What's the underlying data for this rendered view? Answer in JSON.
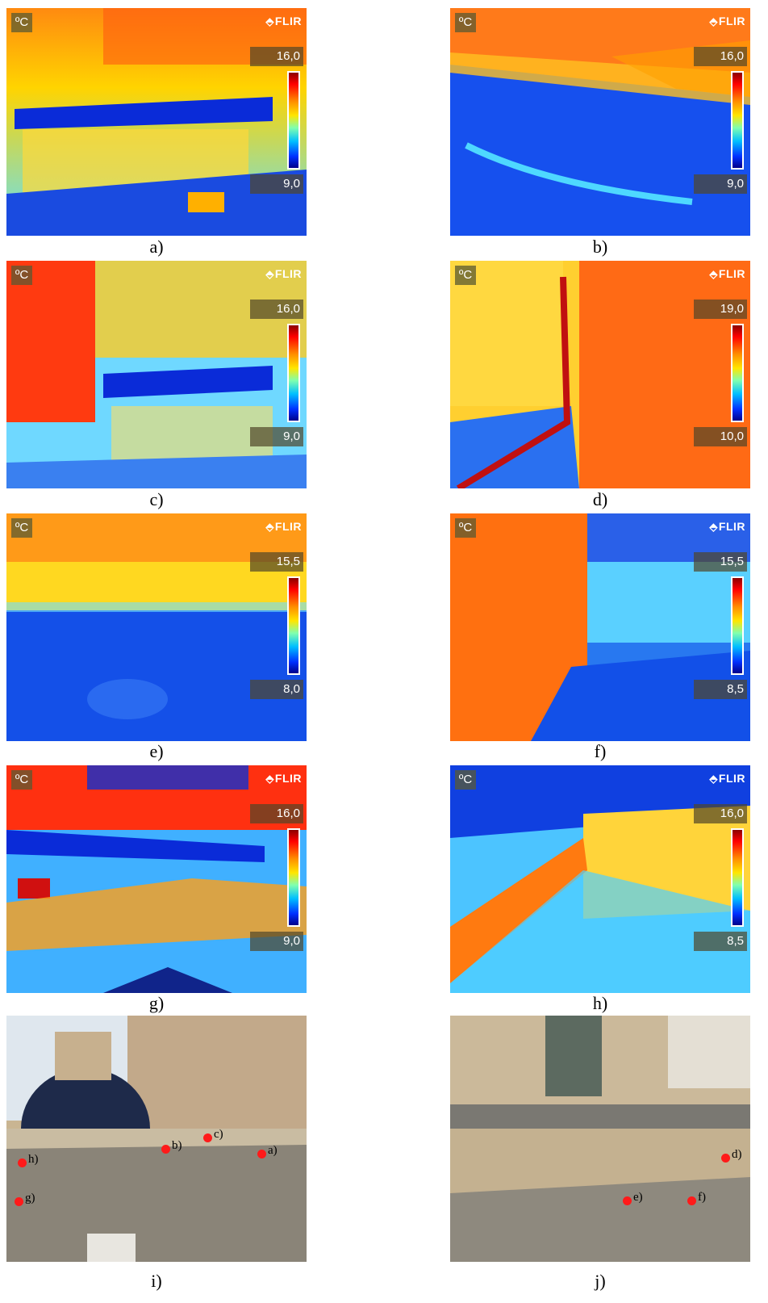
{
  "thermograms": [
    {
      "id": "a",
      "unit": "ºC",
      "brand": "FLIR",
      "max": "16,0",
      "min": "9,0",
      "caption": "a)"
    },
    {
      "id": "b",
      "unit": "ºC",
      "brand": "FLIR",
      "max": "16,0",
      "min": "9,0",
      "caption": "b)"
    },
    {
      "id": "c",
      "unit": "ºC",
      "brand": "FLIR",
      "max": "16,0",
      "min": "9,0",
      "caption": "c)"
    },
    {
      "id": "d",
      "unit": "ºC",
      "brand": "FLIR",
      "max": "19,0",
      "min": "10,0",
      "caption": "d)"
    },
    {
      "id": "e",
      "unit": "ºC",
      "brand": "FLIR",
      "max": "15,5",
      "min": "8,0",
      "caption": "e)"
    },
    {
      "id": "f",
      "unit": "ºC",
      "brand": "FLIR",
      "max": "15,5",
      "min": "8,5",
      "caption": "f)"
    },
    {
      "id": "g",
      "unit": "ºC",
      "brand": "FLIR",
      "max": "16,0",
      "min": "9,0",
      "caption": "g)"
    },
    {
      "id": "h",
      "unit": "ºC",
      "brand": "FLIR",
      "max": "16,0",
      "min": "8,5",
      "caption": "h)"
    }
  ],
  "photos": [
    {
      "id": "i",
      "caption": "i)",
      "markers": [
        "b)",
        "c)",
        "a)",
        "h)",
        "g)"
      ]
    },
    {
      "id": "j",
      "caption": "j)",
      "markers": [
        "d)",
        "e)",
        "f)"
      ]
    }
  ]
}
